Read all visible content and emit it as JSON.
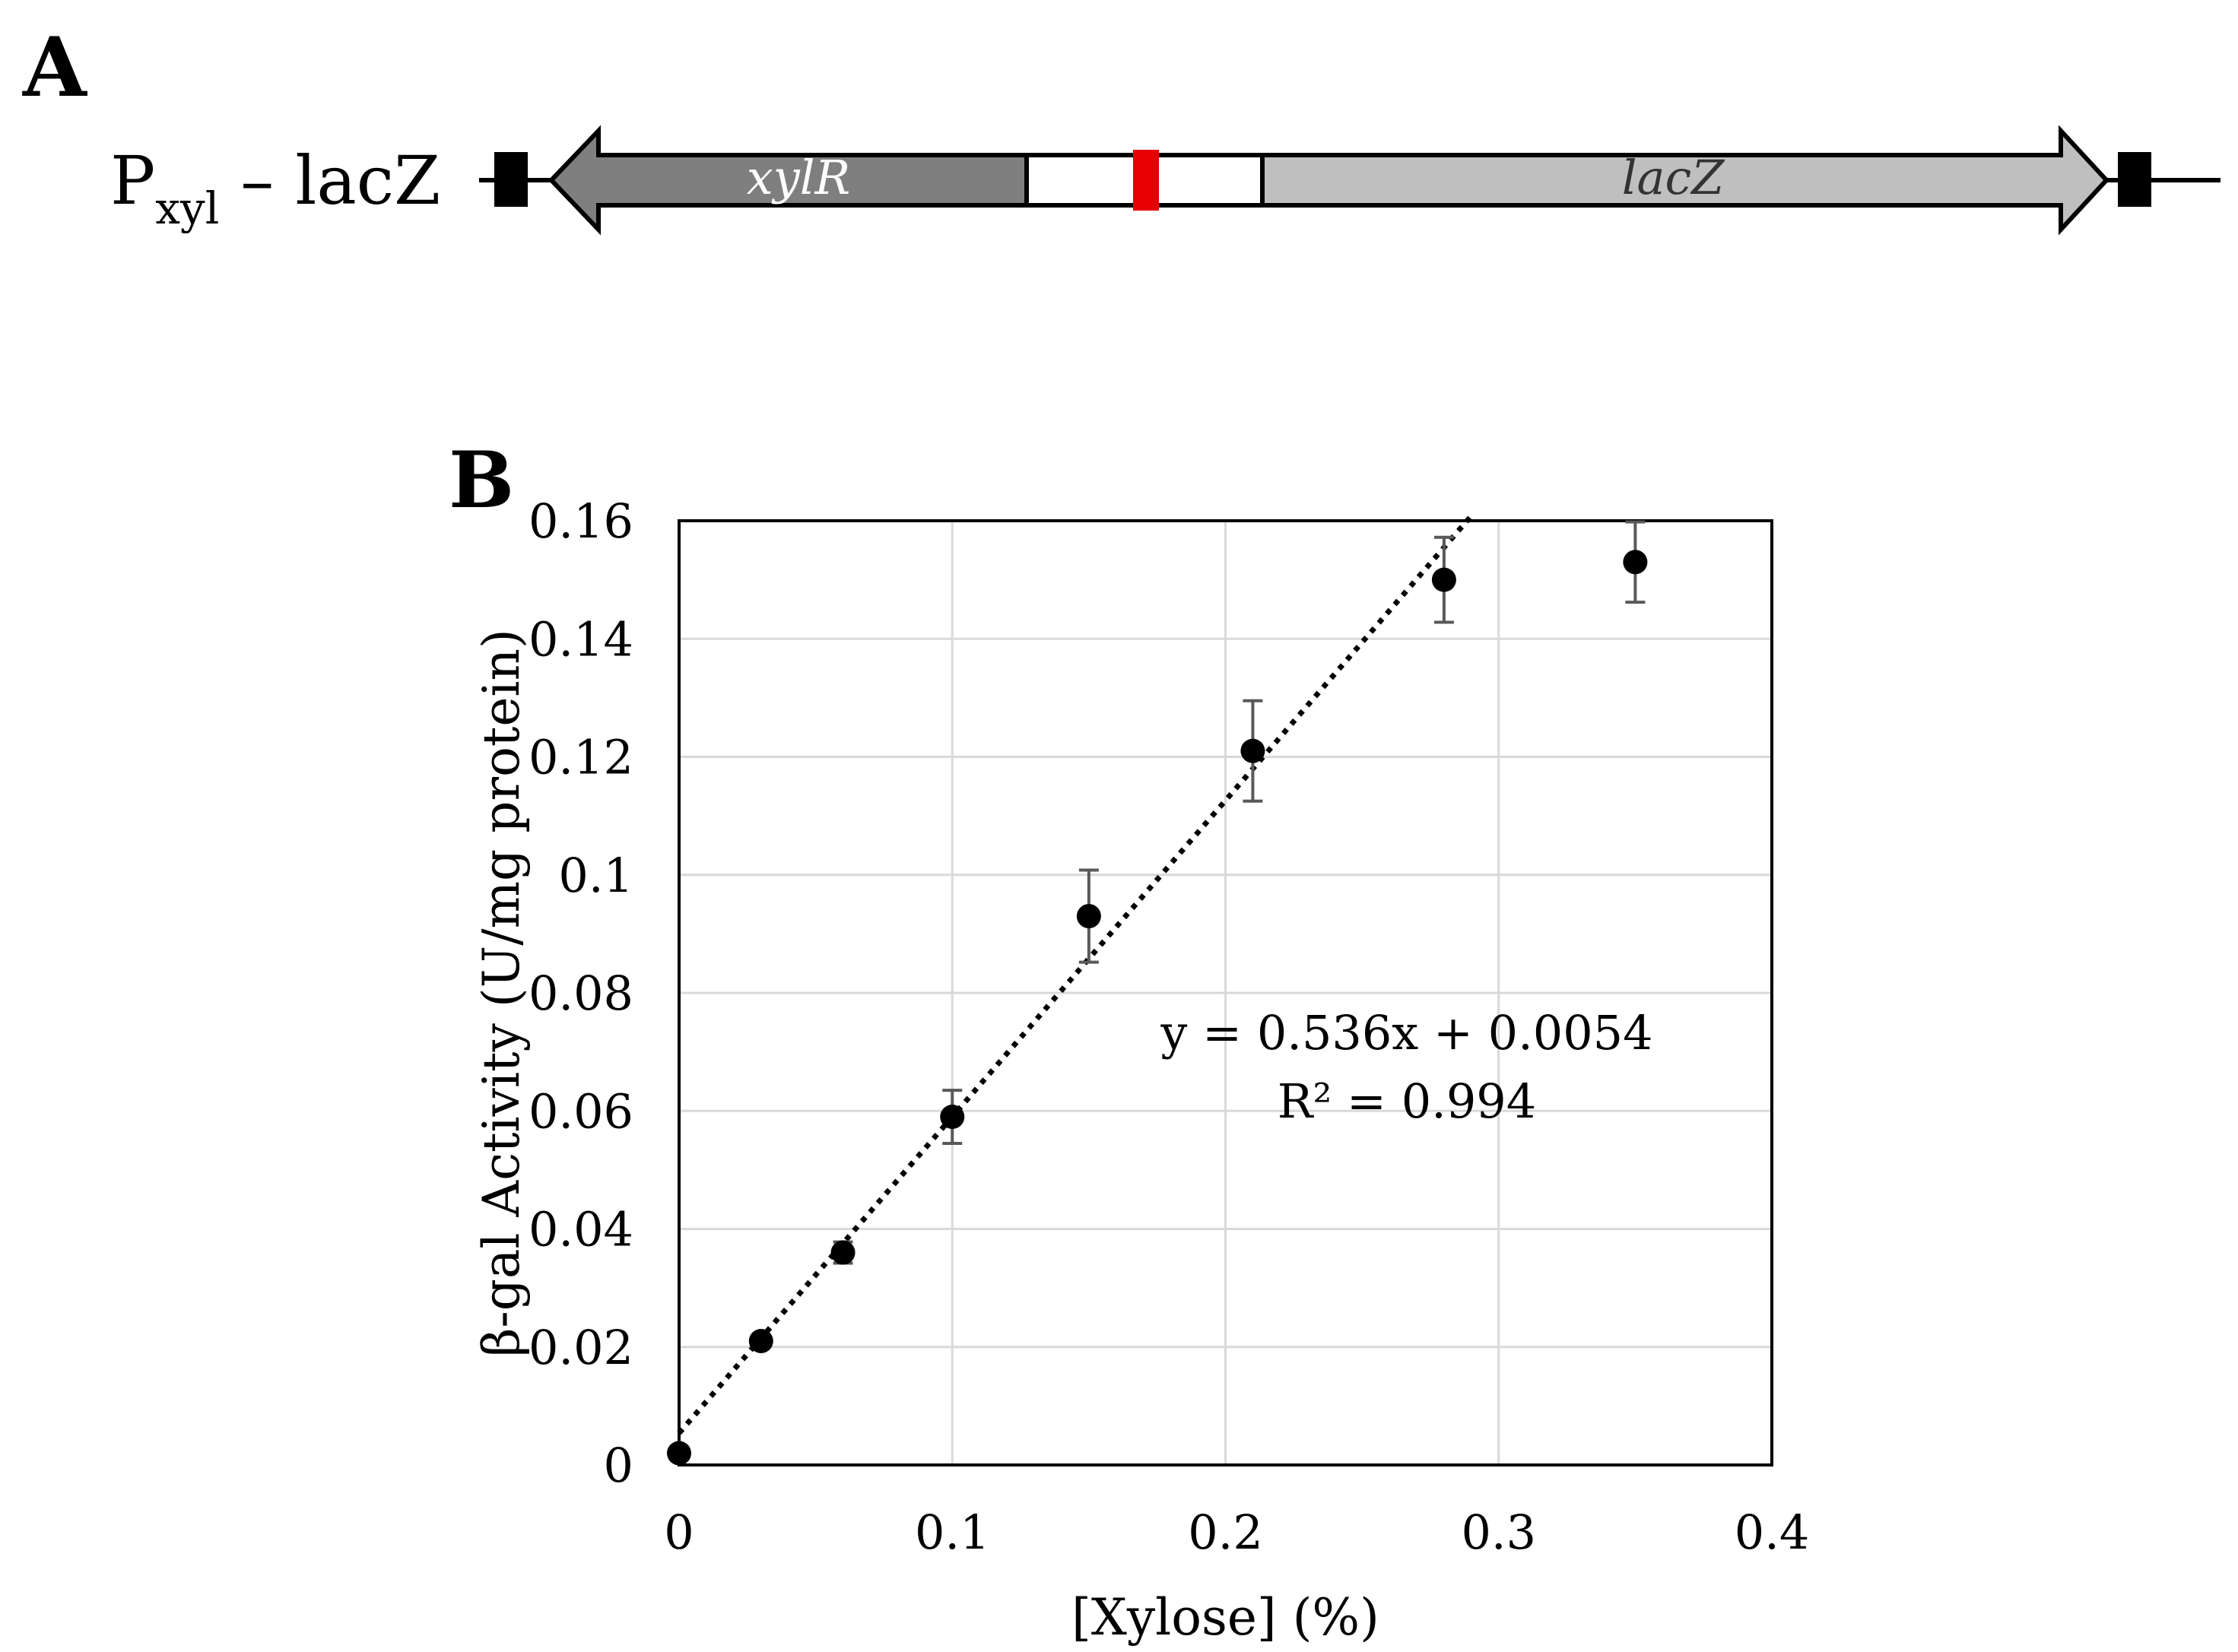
{
  "panel_a": {
    "label": "A",
    "construct_main": "P",
    "construct_sub": "xyl",
    "construct_rest": " – lacZ",
    "gene_left": "xylR",
    "gene_right": "lacZ",
    "colors": {
      "gene_left_fill": "#7f7f7f",
      "gene_right_fill": "#bfbfbf",
      "promoter_mark": "#e60000"
    }
  },
  "panel_b": {
    "label": "B"
  },
  "chart_data": {
    "type": "scatter",
    "xlabel": "[Xylose] (%)",
    "ylabel": "β-gal Activity (U/mg protein)",
    "xlim": [
      0,
      0.4
    ],
    "ylim": [
      0,
      0.16
    ],
    "x_ticks": [
      0,
      0.1,
      0.2,
      0.3,
      0.4
    ],
    "x_tick_labels": [
      "0",
      "0.1",
      "0.2",
      "0.3",
      "0.4"
    ],
    "y_ticks": [
      0,
      0.02,
      0.04,
      0.06,
      0.08,
      0.1,
      0.12,
      0.14,
      0.16
    ],
    "y_tick_labels": [
      "0",
      "0.02",
      "0.04",
      "0.06",
      "0.08",
      "0.1",
      "0.12",
      "0.14",
      "0.16"
    ],
    "grid": true,
    "series": [
      {
        "name": "β-gal activity",
        "x": [
          0,
          0.03,
          0.06,
          0.1,
          0.15,
          0.21,
          0.28,
          0.35
        ],
        "y": [
          0.002,
          0.021,
          0.036,
          0.059,
          0.093,
          0.121,
          0.15,
          0.153
        ],
        "err": [
          0,
          0.0008,
          0.0018,
          0.0045,
          0.0078,
          0.0085,
          0.0072,
          0.0068
        ]
      }
    ],
    "trendline": {
      "slope": 0.536,
      "intercept": 0.0054,
      "x_range": [
        0,
        0.29
      ],
      "style": "dotted"
    },
    "annotation_equation": "y = 0.536x + 0.0054",
    "annotation_r2": "R² = 0.994",
    "colors": {
      "marker": "#000000",
      "error_bar": "#595959",
      "grid": "#d9d9d9"
    }
  }
}
